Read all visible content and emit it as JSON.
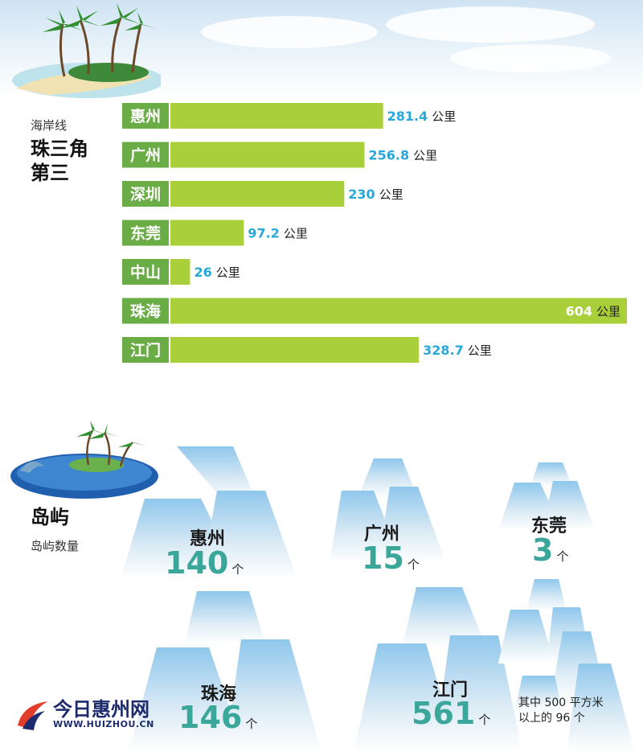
{
  "coastline": {
    "subtitle": "海岸线",
    "title_line1": "珠三角",
    "title_line2": "第三",
    "unit": "公里"
  },
  "chart_data": {
    "type": "bar",
    "orientation": "horizontal",
    "categories": [
      "惠州",
      "广州",
      "深圳",
      "东莞",
      "中山",
      "珠海",
      "江门"
    ],
    "values": [
      281.4,
      256.8,
      230,
      97.2,
      26,
      604,
      328.7
    ],
    "value_labels": [
      "281.4",
      "256.8",
      "230",
      "97.2",
      "26",
      "604",
      "328.7"
    ],
    "unit": "公里",
    "xlim": [
      0,
      604
    ],
    "bar_color": "#a9cf3a",
    "label_bg": "#6aac46",
    "value_color": "#27a8d9",
    "grid": false
  },
  "islands": {
    "title": "岛屿",
    "subtitle": "岛屿数量",
    "unit": "个",
    "items": [
      {
        "city": "惠州",
        "count": "140"
      },
      {
        "city": "广州",
        "count": "15"
      },
      {
        "city": "东莞",
        "count": "3"
      },
      {
        "city": "珠海",
        "count": "146"
      },
      {
        "city": "江门",
        "count": "561"
      }
    ],
    "note_line1": "其中 500 平方米",
    "note_line2": "以上的 96 个",
    "value_color": "#3aa79a"
  },
  "logo": {
    "name": "今日惠州网",
    "url": "WWW.HUIZHOU.CN"
  }
}
